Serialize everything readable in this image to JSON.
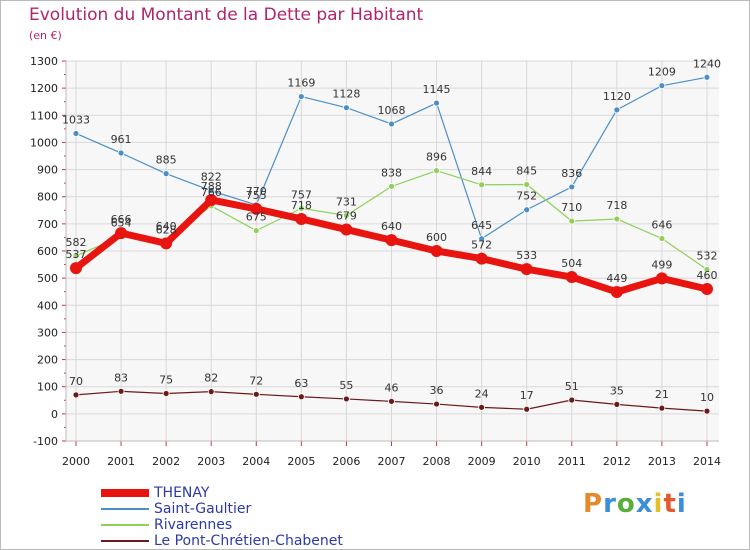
{
  "header": {
    "title": "Evolution du Montant de la Dette par Habitant",
    "subtitle": "(en €)"
  },
  "logo": {
    "text": "Proxiti",
    "colors": [
      "#e58a2c",
      "#3a8fd8",
      "#5aae3a",
      "#3a8fd8",
      "#e5c02c",
      "#e55a2c",
      "#3a8fd8"
    ]
  },
  "chart_data": {
    "type": "line",
    "title": "Evolution du Montant de la Dette par Habitant",
    "subtitle": "(en €)",
    "xlabel": "",
    "ylabel": "",
    "x": [
      "2000",
      "2001",
      "2002",
      "2003",
      "2004",
      "2005",
      "2006",
      "2007",
      "2008",
      "2009",
      "2010",
      "2011",
      "2012",
      "2013",
      "2014"
    ],
    "ylim": [
      -100,
      1300
    ],
    "yticks": [
      -100,
      0,
      100,
      200,
      300,
      400,
      500,
      600,
      700,
      800,
      900,
      1000,
      1100,
      1200,
      1300
    ],
    "grid": true,
    "legend_position": "bottom-left",
    "series": [
      {
        "name": "THENAY",
        "color": "#e8140f",
        "values": [
          537,
          666,
          628,
          788,
          755,
          718,
          679,
          640,
          600,
          572,
          533,
          504,
          449,
          499,
          460
        ],
        "labels": [
          "537",
          "666",
          "628",
          "788",
          "755",
          "718",
          "679",
          "640",
          "600",
          "572",
          "533",
          "504",
          "449",
          "499",
          "460"
        ]
      },
      {
        "name": "Saint-Gaultier",
        "color": "#4b8fc9",
        "values": [
          1033,
          961,
          885,
          822,
          770,
          1169,
          1128,
          1068,
          1145,
          645,
          752,
          836,
          1120,
          1209,
          1240
        ],
        "labels": [
          "1033",
          "961",
          "885",
          "822",
          "770",
          "1169",
          "1128",
          "1068",
          "1145",
          "645",
          "752",
          "836",
          "1120",
          "1209",
          "1240"
        ]
      },
      {
        "name": "Rivarennes",
        "color": "#8fd05a",
        "values": [
          582,
          654,
          640,
          766,
          675,
          757,
          731,
          838,
          896,
          844,
          845,
          710,
          718,
          646,
          532
        ],
        "labels": [
          "582",
          "654",
          "640",
          "766",
          "675",
          "757",
          "731",
          "838",
          "896",
          "844",
          "845",
          "710",
          "718",
          "646",
          "532"
        ]
      },
      {
        "name": "Le Pont-Chrétien-Chabenet",
        "color": "#6b1a1a",
        "values": [
          70,
          83,
          75,
          82,
          72,
          63,
          55,
          46,
          36,
          24,
          17,
          51,
          35,
          21,
          10
        ],
        "labels": [
          "70",
          "83",
          "75",
          "82",
          "72",
          "63",
          "55",
          "46",
          "36",
          "24",
          "17",
          "51",
          "35",
          "21",
          "10"
        ]
      }
    ]
  }
}
